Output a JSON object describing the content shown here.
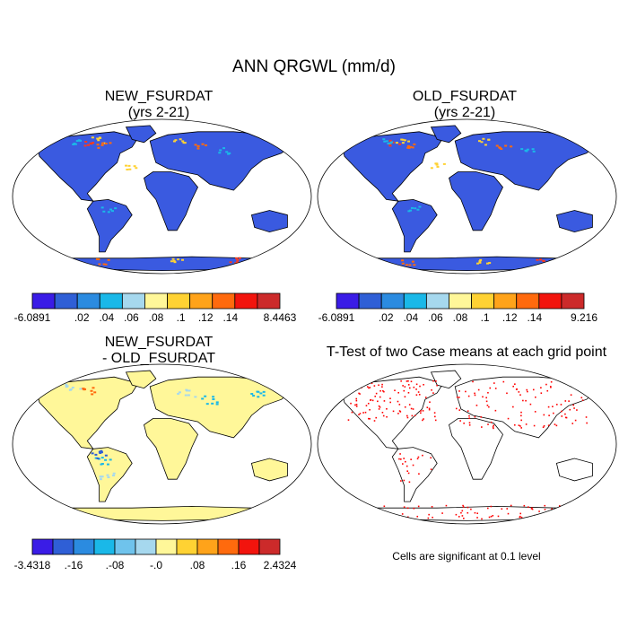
{
  "title": "ANN QRGWL (mm/d)",
  "panels": [
    {
      "title_line1": "NEW_FSURDAT",
      "title_line2": "(yrs 2-21)"
    },
    {
      "title_line1": "OLD_FSURDAT",
      "title_line2": "(yrs 2-21)"
    },
    {
      "title_line1": "NEW_FSURDAT",
      "title_line2": "- OLD_FSURDAT"
    },
    {
      "title_line1": "T-Test of two Case means at each grid point",
      "title_line2": ""
    }
  ],
  "colorbars": [
    {
      "colors": [
        "#3a1ce6",
        "#2f5fd6",
        "#2b8be0",
        "#1ab8e8",
        "#a6d8ee",
        "#fff799",
        "#ffd233",
        "#ffa31a",
        "#ff6a0d",
        "#f2140d",
        "#cc2a2a"
      ],
      "labels": [
        "-6.0891",
        "",
        ".02",
        ".04",
        ".06",
        ".08",
        ".1",
        ".12",
        ".14",
        "",
        "8.4463"
      ]
    },
    {
      "colors": [
        "#3a1ce6",
        "#2f5fd6",
        "#2b8be0",
        "#1ab8e8",
        "#a6d8ee",
        "#fff799",
        "#ffd233",
        "#ffa31a",
        "#ff6a0d",
        "#f2140d",
        "#cc2a2a"
      ],
      "labels": [
        "-6.0891",
        "",
        ".02",
        ".04",
        ".06",
        ".08",
        ".1",
        ".12",
        ".14",
        "",
        "9.216"
      ]
    },
    {
      "colors": [
        "#3a1ce6",
        "#2f5fd6",
        "#2b8be0",
        "#1ab8e8",
        "#6fc3ec",
        "#a6d8ee",
        "#fff799",
        "#ffd233",
        "#ffa31a",
        "#ff6a0d",
        "#f2140d",
        "#cc2a2a"
      ],
      "labels": [
        "-3.4318",
        "",
        ".-16",
        "",
        ".-08",
        "",
        "-.0",
        "",
        ".08",
        "",
        ".16",
        "",
        "2.4324"
      ]
    }
  ],
  "significance_note": "Cells are significant at 0.1 level",
  "colors": {
    "land_panel1": "#3a5ae0",
    "land_panel2": "#3a5ae0",
    "land_diff": "#fff799",
    "sig_cells": "#ff0000",
    "coast": "#000000"
  }
}
